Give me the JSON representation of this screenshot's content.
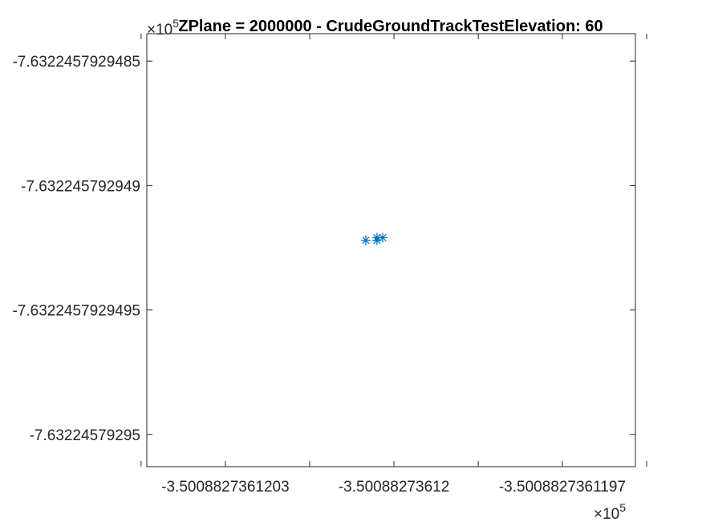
{
  "chart_data": {
    "type": "scatter",
    "title": "ZPlane = 2000000 - CrudeGroundTrackTestElevation: 60",
    "xlabel": "",
    "ylabel": "",
    "x_exponent_label": "×10",
    "x_exponent_power": "5",
    "y_exponent_label": "×10",
    "y_exponent_power": "5",
    "x_ticks": [
      {
        "value": -3.5008827361203,
        "label": "-3.5008827361203"
      },
      {
        "value": -3.50088273612,
        "label": "-3.50088273612"
      },
      {
        "value": -3.5008827361197,
        "label": "-3.5008827361197"
      }
    ],
    "y_ticks": [
      {
        "value": -7.6322457929485,
        "label": "-7.6322457929485"
      },
      {
        "value": -7.632245792949,
        "label": "-7.632245792949"
      },
      {
        "value": -7.6322457929495,
        "label": "-7.6322457929495"
      },
      {
        "value": -7.63224579295,
        "label": "-7.63224579295"
      }
    ],
    "minor_x_ticks": [
      -3.50088273612045,
      -3.50088273612015,
      -3.50088273611985,
      -3.50088273611955
    ],
    "xlim": [
      -3.50088273612044,
      -3.50088273611957
    ],
    "ylim": [
      -7.63224579295013,
      -7.63224579294839
    ],
    "marker": "asterisk",
    "grid": false,
    "box": true,
    "series": [
      {
        "color": "#0072BD",
        "points": [
          {
            "x": -3.50088273612005,
            "y": -7.63224579294922
          },
          {
            "x": -3.50088273612003,
            "y": -7.63224579294921
          },
          {
            "x": -3.50088273612002,
            "y": -7.63224579294921
          },
          {
            "x": -3.50088273612003,
            "y": -7.63224579294922
          }
        ]
      }
    ]
  }
}
